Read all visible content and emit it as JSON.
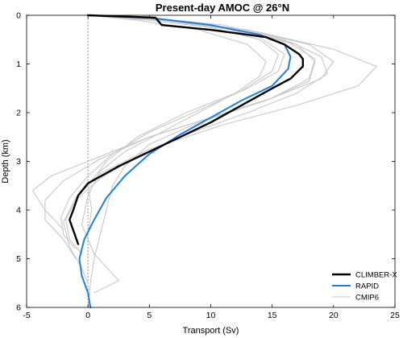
{
  "chart_data": {
    "type": "line",
    "title": "Present-day AMOC @ 26°N",
    "xlabel": "Transport (Sv)",
    "ylabel": "Depth (km)",
    "xlim": [
      -5,
      25
    ],
    "ylim": [
      6,
      0
    ],
    "xticks": [
      -5,
      0,
      5,
      10,
      15,
      20,
      25
    ],
    "yticks": [
      0,
      1,
      2,
      3,
      4,
      5,
      6
    ],
    "grid": false,
    "legend_position": "bottom-right",
    "zero_line": {
      "x": 0,
      "style": "dotted"
    },
    "series": [
      {
        "name": "CLIMBER-X",
        "color": "#000000",
        "x": [
          0,
          5.5,
          6,
          10,
          14.5,
          16,
          17.2,
          17.5,
          17.5,
          16.5,
          15,
          12.5,
          10,
          7.5,
          5,
          2.5,
          0,
          -0.8,
          -1.2,
          -1.5,
          -0.8
        ],
        "y": [
          0,
          0.05,
          0.2,
          0.3,
          0.45,
          0.6,
          0.8,
          0.9,
          1.05,
          1.3,
          1.5,
          1.85,
          2.2,
          2.5,
          2.8,
          3.1,
          3.45,
          3.7,
          4.0,
          4.2,
          4.7
        ]
      },
      {
        "name": "RAPID",
        "color": "#1f7fdc",
        "x": [
          0,
          5,
          10,
          14,
          16,
          16.5,
          16.3,
          15,
          12.5,
          10,
          7.5,
          5,
          3,
          1.5,
          0.5,
          -0.3,
          -0.7,
          -0.5,
          0,
          0.2
        ],
        "y": [
          0,
          0.05,
          0.2,
          0.4,
          0.6,
          0.85,
          1.1,
          1.45,
          1.75,
          2.1,
          2.45,
          2.85,
          3.3,
          3.75,
          4.2,
          4.6,
          5.0,
          5.35,
          5.7,
          6.0
        ]
      },
      {
        "name": "CMIP6",
        "color": "#c8c8c8",
        "x": [
          0,
          6,
          12,
          17,
          18.5,
          18,
          14.5,
          9,
          5,
          3,
          2,
          1.5,
          1,
          0.5,
          0.2,
          0
        ],
        "y": [
          0,
          0.1,
          0.3,
          0.6,
          0.95,
          1.35,
          1.75,
          2.2,
          2.65,
          3.1,
          3.5,
          4.0,
          4.5,
          5.0,
          5.5,
          6.0
        ]
      },
      {
        "x": [
          0,
          7,
          14,
          20,
          23.5,
          22,
          17,
          11,
          5,
          1,
          -1,
          -2,
          -1.5,
          -0.5,
          0
        ],
        "y": [
          0,
          0.1,
          0.35,
          0.7,
          1.05,
          1.45,
          1.85,
          2.25,
          2.75,
          3.25,
          3.75,
          4.25,
          4.75,
          5.2,
          5.5
        ],
        "color": "#c8c8c8"
      },
      {
        "x": [
          0,
          5,
          10,
          14,
          15.5,
          15,
          12.5,
          8,
          4,
          1.5,
          0,
          0.3,
          0
        ],
        "y": [
          0,
          0.1,
          0.25,
          0.5,
          0.8,
          1.15,
          1.55,
          2.0,
          2.5,
          3.0,
          3.5,
          4.0,
          4.5
        ],
        "color": "#c8c8c8"
      },
      {
        "x": [
          0,
          6,
          13,
          18,
          20,
          19,
          15,
          10,
          5,
          1,
          -2,
          -3.5,
          -3.5,
          -2,
          -1
        ],
        "y": [
          0,
          0.1,
          0.3,
          0.6,
          0.95,
          1.3,
          1.7,
          2.1,
          2.5,
          2.95,
          3.4,
          3.8,
          4.2,
          4.6,
          5.0
        ],
        "color": "#c8c8c8"
      },
      {
        "x": [
          0,
          5,
          11,
          16,
          18.5,
          18,
          15,
          10,
          5,
          1,
          -3,
          -4.5,
          -3.5,
          -2
        ],
        "y": [
          0,
          0.05,
          0.2,
          0.5,
          0.9,
          1.3,
          1.7,
          2.1,
          2.5,
          2.9,
          3.3,
          3.6,
          4.0,
          4.4
        ],
        "color": "#c8c8c8"
      },
      {
        "x": [
          0,
          4,
          9,
          13,
          14.5,
          14,
          12,
          9,
          6,
          3,
          1,
          0,
          -0.5,
          0.5,
          2.5,
          0.5
        ],
        "y": [
          0,
          0.1,
          0.3,
          0.6,
          0.95,
          1.25,
          1.6,
          2.0,
          2.4,
          2.8,
          3.2,
          3.7,
          4.3,
          4.9,
          5.45,
          5.7
        ],
        "color": "#c8c8c8"
      },
      {
        "x": [
          0,
          6,
          12,
          16.5,
          19,
          19.5,
          17,
          13,
          8,
          4,
          1,
          -1,
          -1.8,
          -1.5,
          -0.5
        ],
        "y": [
          0,
          0.1,
          0.3,
          0.55,
          0.85,
          1.2,
          1.6,
          2.0,
          2.45,
          2.9,
          3.35,
          3.8,
          4.2,
          4.6,
          4.9
        ],
        "color": "#c8c8c8"
      },
      {
        "x": [
          0,
          5,
          10,
          14,
          16,
          15.5,
          13,
          9,
          5,
          2,
          0,
          -1.5,
          -2.2,
          -2,
          -1
        ],
        "y": [
          0,
          0.05,
          0.2,
          0.45,
          0.8,
          1.15,
          1.5,
          1.95,
          2.4,
          2.85,
          3.3,
          3.75,
          4.15,
          4.5,
          4.8
        ],
        "color": "#c8c8c8"
      }
    ]
  }
}
